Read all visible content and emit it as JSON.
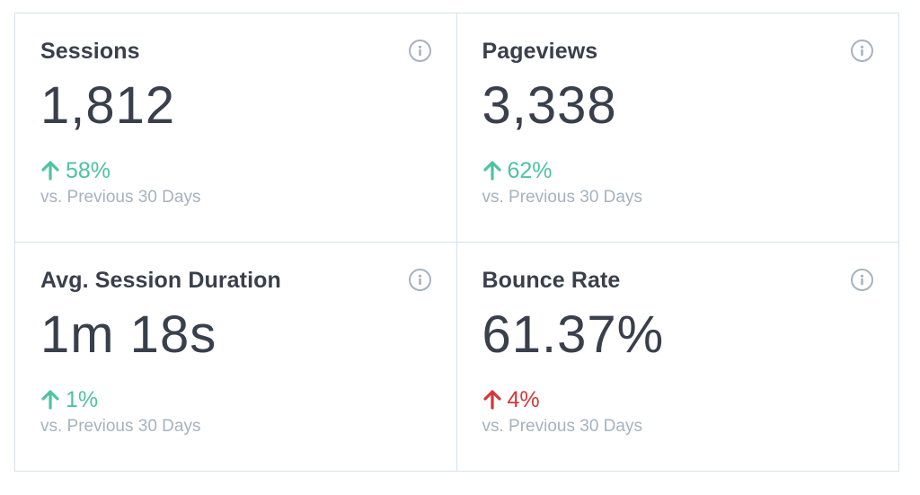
{
  "metrics": [
    {
      "title": "Sessions",
      "value": "1,812",
      "change": "58%",
      "direction": "up",
      "trend_color": "#4ec3a0",
      "comparison": "vs. Previous 30 Days",
      "info_icon": "info-icon"
    },
    {
      "title": "Pageviews",
      "value": "3,338",
      "change": "62%",
      "direction": "up",
      "trend_color": "#4ec3a0",
      "comparison": "vs. Previous 30 Days",
      "info_icon": "info-icon"
    },
    {
      "title": "Avg. Session Duration",
      "value": "1m 18s",
      "change": "1%",
      "direction": "up",
      "trend_color": "#4ec3a0",
      "comparison": "vs. Previous 30 Days",
      "info_icon": "info-icon"
    },
    {
      "title": "Bounce Rate",
      "value": "61.37%",
      "change": "4%",
      "direction": "up",
      "trend_color": "#d63638",
      "comparison": "vs. Previous 30 Days",
      "info_icon": "info-icon"
    }
  ],
  "colors": {
    "text": "#393f4c",
    "muted": "#a6b2bf",
    "border": "#d6e2ec",
    "positive": "#4ec3a0",
    "negative": "#d63638"
  }
}
